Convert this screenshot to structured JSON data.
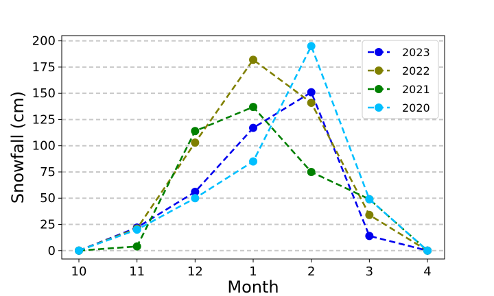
{
  "chart_data": {
    "type": "line",
    "title": "",
    "xlabel": "Month",
    "ylabel": "Snowfall (cm)",
    "categories": [
      "10",
      "11",
      "12",
      "1",
      "2",
      "3",
      "4"
    ],
    "ylim": [
      -8,
      205
    ],
    "yticks": [
      0,
      25,
      50,
      75,
      100,
      125,
      150,
      175,
      200
    ],
    "grid": "horizontal dashed",
    "legend_position": "top-right",
    "series": [
      {
        "name": "2023",
        "color": "#0000ee",
        "values": [
          0,
          22,
          56,
          117,
          151,
          14,
          0
        ]
      },
      {
        "name": "2022",
        "color": "#808000",
        "values": [
          0,
          21,
          103,
          182,
          141,
          34,
          0
        ]
      },
      {
        "name": "2021",
        "color": "#008000",
        "values": [
          0,
          4,
          114,
          137,
          75,
          49,
          0
        ]
      },
      {
        "name": "2020",
        "color": "#00bfff",
        "values": [
          0,
          20,
          50,
          85,
          195,
          49,
          0
        ]
      }
    ]
  }
}
